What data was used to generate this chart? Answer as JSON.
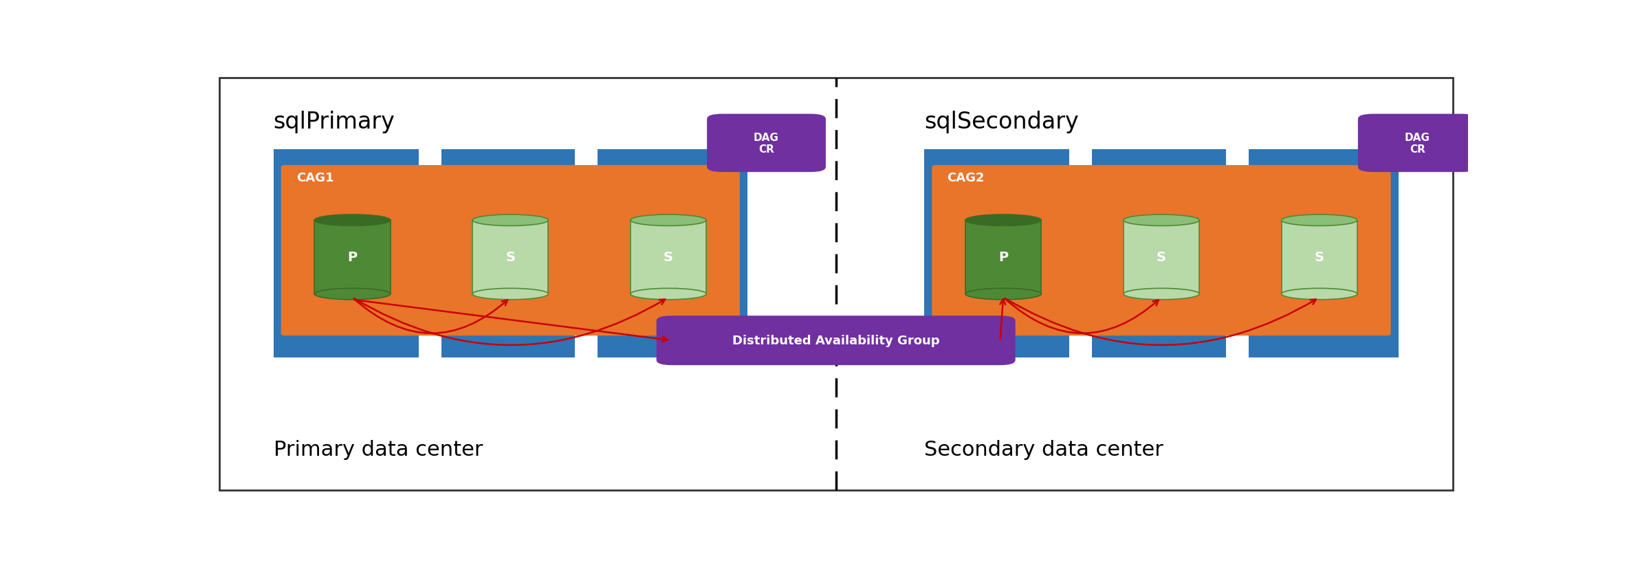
{
  "fig_width": 23.72,
  "fig_height": 8.2,
  "bg_color": "#ffffff",
  "border_color": "#333333",
  "blue_color": "#2E75B6",
  "orange_color": "#E8752A",
  "purple_color": "#7030A0",
  "green_dark": "#3A6B25",
  "green_mid": "#4E8A35",
  "green_light": "#8BBF78",
  "green_light2": "#B8D9A8",
  "red_color": "#CC0000",
  "white_color": "#ffffff",
  "black_color": "#000000",
  "left_title": "sqlPrimary",
  "right_title": "sqlSecondary",
  "left_dc_label": "Primary data center",
  "right_dc_label": "Secondary data center",
  "dag_label": "DAG\nCR",
  "dag_label_center": "Distributed Availability Group",
  "cag1_label": "CAG1",
  "cag2_label": "CAG2",
  "p_label": "P",
  "s_label": "S"
}
